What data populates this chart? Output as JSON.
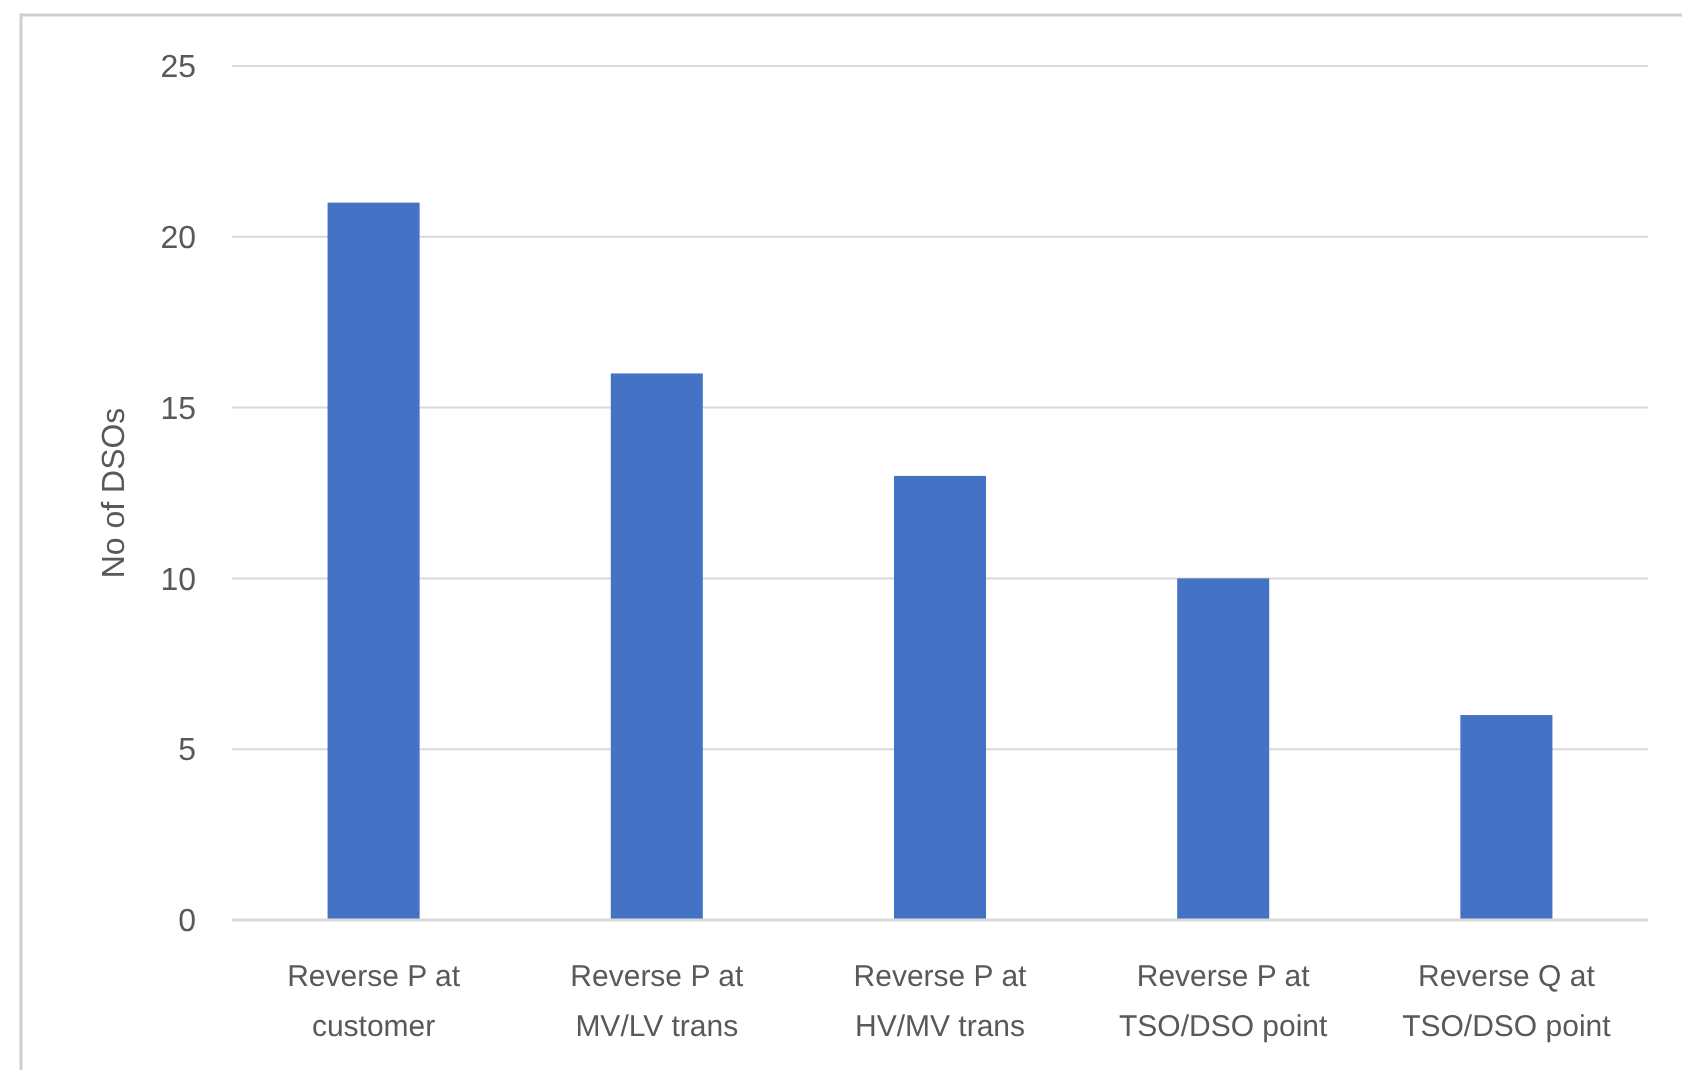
{
  "chart_data": {
    "type": "bar",
    "ylabel": "No of DSOs",
    "categories": [
      "Reverse P at customer",
      "Reverse P at MV/LV trans",
      "Reverse P at HV/MV trans",
      "Reverse P at TSO/DSO point",
      "Reverse Q at TSO/DSO point"
    ],
    "values": [
      21,
      16,
      13,
      10,
      6
    ],
    "color": "#4472c4",
    "ylim": [
      0,
      25
    ],
    "yticks": [
      0,
      5,
      10,
      15,
      20,
      25
    ],
    "grid": "y"
  }
}
